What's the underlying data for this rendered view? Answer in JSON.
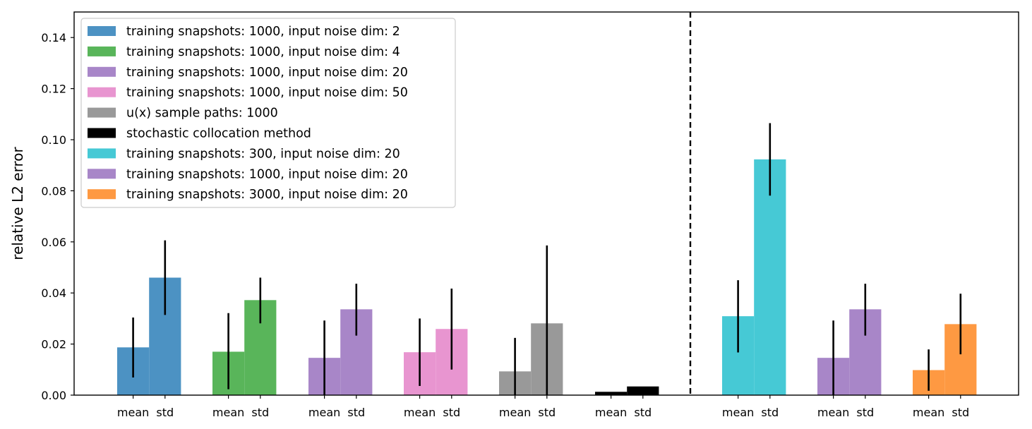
{
  "chart_data": {
    "type": "bar",
    "ylabel": "relative L2 error",
    "xlabel": "",
    "title": "",
    "ylim": [
      0,
      0.15
    ],
    "yticks": [
      0.0,
      0.02,
      0.04,
      0.06,
      0.08,
      0.1,
      0.12,
      0.14
    ],
    "ytick_labels": [
      "0.00",
      "0.02",
      "0.04",
      "0.06",
      "0.08",
      "0.10",
      "0.12",
      "0.14"
    ],
    "bar_labels": [
      "mean",
      "std"
    ],
    "grid": false,
    "legend_position": "top-left",
    "divider": "dashed vertical line between 6th and 7th group",
    "groups": [
      {
        "legend": "training snapshots: 1000, input noise dim: 2",
        "color": "#4c92c3",
        "mean": 0.0187,
        "mean_err": [
          0.0069,
          0.0304
        ],
        "std": 0.046,
        "std_err": [
          0.0314,
          0.0606
        ]
      },
      {
        "legend": "training snapshots: 1000, input noise dim: 4",
        "color": "#59b55a",
        "mean": 0.017,
        "mean_err": [
          0.0023,
          0.0321
        ],
        "std": 0.0372,
        "std_err": [
          0.0281,
          0.046
        ]
      },
      {
        "legend": "training snapshots: 1000, input noise dim: 20",
        "color": "#a886c8",
        "mean": 0.0146,
        "mean_err": [
          0.0,
          0.0292
        ],
        "std": 0.0336,
        "std_err": [
          0.0233,
          0.0436
        ]
      },
      {
        "legend": "training snapshots: 1000, input noise dim: 50",
        "color": "#e895d0",
        "mean": 0.0168,
        "mean_err": [
          0.0036,
          0.03
        ],
        "std": 0.0259,
        "std_err": [
          0.01,
          0.0417
        ]
      },
      {
        "legend": "u(x) sample paths: 1000",
        "color": "#999999",
        "mean": 0.0093,
        "mean_err": [
          0.0,
          0.0224
        ],
        "std": 0.0281,
        "std_err": [
          0.0,
          0.0586
        ]
      },
      {
        "legend": "stochastic collocation method",
        "color": "#000000",
        "mean": 0.0013,
        "mean_err": null,
        "std": 0.0034,
        "std_err": null
      },
      {
        "legend": "training snapshots: 300, input noise dim: 20",
        "color": "#46c9d5",
        "mean": 0.0309,
        "mean_err": [
          0.0167,
          0.045
        ],
        "std": 0.0923,
        "std_err": [
          0.0781,
          0.1065
        ]
      },
      {
        "legend": "training snapshots: 1000, input noise dim: 20",
        "color": "#a886c8",
        "mean": 0.0146,
        "mean_err": [
          0.0,
          0.0292
        ],
        "std": 0.0336,
        "std_err": [
          0.0233,
          0.0436
        ]
      },
      {
        "legend": "training snapshots: 3000, input noise dim: 20",
        "color": "#fe9942",
        "mean": 0.0098,
        "mean_err": [
          0.0017,
          0.0179
        ],
        "std": 0.0278,
        "std_err": [
          0.016,
          0.0397
        ]
      }
    ]
  }
}
